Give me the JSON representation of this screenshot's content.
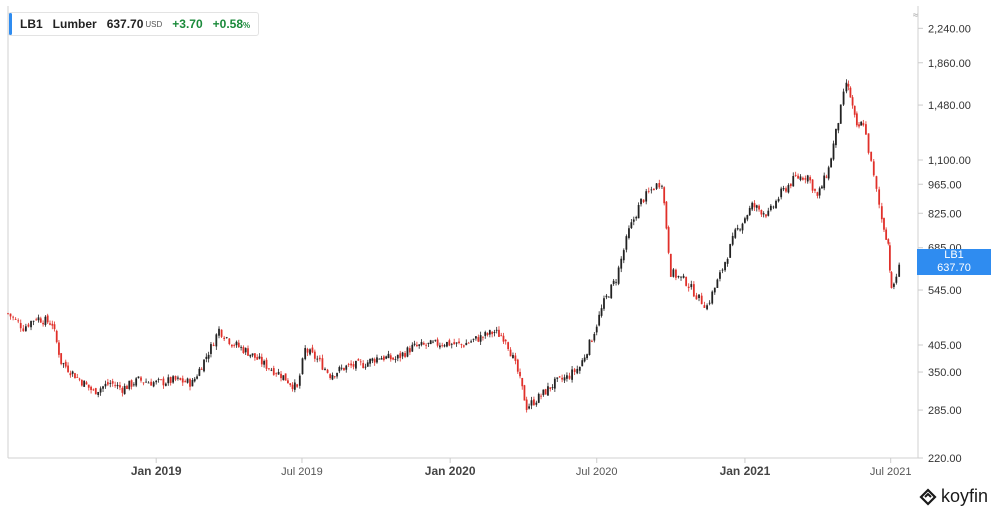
{
  "legend": {
    "symbol": "LB1",
    "name": "Lumber",
    "price": "637.70",
    "currency": "USD",
    "change": "+3.70",
    "change_pct": "+0.58",
    "pct_unit": "%",
    "accent_color": "#2f8cf0",
    "positive_color": "#1a8a3a"
  },
  "price_tag": {
    "symbol": "LB1",
    "value": "637.70"
  },
  "brand": {
    "name": "koyfin",
    "icon": "koyfin-logo-icon"
  },
  "corner_mark": "≈",
  "chart_data": {
    "type": "candlestick",
    "y_scale": "log",
    "ylim": [
      220,
      2500
    ],
    "y_ticks": [
      "2,240.00",
      "1,860.00",
      "1,480.00",
      "1,100.00",
      "965.00",
      "825.00",
      "685.00",
      "545.00",
      "405.00",
      "350.00",
      "285.00",
      "220.00"
    ],
    "y_tick_values": [
      2240,
      1860,
      1480,
      1100,
      965,
      825,
      685,
      545,
      405,
      350,
      285,
      220
    ],
    "x_range": [
      "2018-07-01",
      "2021-07-20"
    ],
    "x_ticks": [
      {
        "label": "Jan 2019",
        "date": "2019-01-01",
        "major": true
      },
      {
        "label": "Jul 2019",
        "date": "2019-07-01",
        "major": false
      },
      {
        "label": "Jan 2020",
        "date": "2020-01-01",
        "major": true
      },
      {
        "label": "Jul 2020",
        "date": "2020-07-01",
        "major": false
      },
      {
        "label": "Jan 2021",
        "date": "2021-01-01",
        "major": true
      },
      {
        "label": "Jul 2021",
        "date": "2021-07-01",
        "major": false
      }
    ],
    "up_color": "#222222",
    "down_color": "#e0302a",
    "close_path": [
      {
        "date": "2018-07-01",
        "close": 480
      },
      {
        "date": "2018-07-20",
        "close": 445
      },
      {
        "date": "2018-08-05",
        "close": 470
      },
      {
        "date": "2018-08-25",
        "close": 455
      },
      {
        "date": "2018-09-05",
        "close": 370
      },
      {
        "date": "2018-09-25",
        "close": 340
      },
      {
        "date": "2018-10-15",
        "close": 315
      },
      {
        "date": "2018-11-05",
        "close": 330
      },
      {
        "date": "2018-11-20",
        "close": 320
      },
      {
        "date": "2018-12-10",
        "close": 335
      },
      {
        "date": "2019-01-01",
        "close": 330
      },
      {
        "date": "2019-01-25",
        "close": 335
      },
      {
        "date": "2019-02-15",
        "close": 330
      },
      {
        "date": "2019-03-10",
        "close": 400
      },
      {
        "date": "2019-03-20",
        "close": 440
      },
      {
        "date": "2019-04-05",
        "close": 410
      },
      {
        "date": "2019-04-25",
        "close": 390
      },
      {
        "date": "2019-05-15",
        "close": 365
      },
      {
        "date": "2019-06-05",
        "close": 345
      },
      {
        "date": "2019-06-25",
        "close": 320
      },
      {
        "date": "2019-07-05",
        "close": 395
      },
      {
        "date": "2019-07-20",
        "close": 375
      },
      {
        "date": "2019-08-05",
        "close": 345
      },
      {
        "date": "2019-08-25",
        "close": 360
      },
      {
        "date": "2019-09-15",
        "close": 365
      },
      {
        "date": "2019-10-05",
        "close": 380
      },
      {
        "date": "2019-10-25",
        "close": 375
      },
      {
        "date": "2019-11-15",
        "close": 400
      },
      {
        "date": "2019-12-05",
        "close": 405
      },
      {
        "date": "2019-12-25",
        "close": 410
      },
      {
        "date": "2020-01-15",
        "close": 405
      },
      {
        "date": "2020-02-05",
        "close": 420
      },
      {
        "date": "2020-02-25",
        "close": 435
      },
      {
        "date": "2020-03-10",
        "close": 420
      },
      {
        "date": "2020-03-25",
        "close": 350
      },
      {
        "date": "2020-04-05",
        "close": 290
      },
      {
        "date": "2020-04-20",
        "close": 305
      },
      {
        "date": "2020-05-10",
        "close": 330
      },
      {
        "date": "2020-05-25",
        "close": 340
      },
      {
        "date": "2020-06-10",
        "close": 360
      },
      {
        "date": "2020-06-25",
        "close": 420
      },
      {
        "date": "2020-07-10",
        "close": 510
      },
      {
        "date": "2020-07-25",
        "close": 580
      },
      {
        "date": "2020-08-10",
        "close": 750
      },
      {
        "date": "2020-08-25",
        "close": 880
      },
      {
        "date": "2020-09-10",
        "close": 950
      },
      {
        "date": "2020-09-20",
        "close": 980
      },
      {
        "date": "2020-10-01",
        "close": 600
      },
      {
        "date": "2020-10-20",
        "close": 570
      },
      {
        "date": "2020-11-05",
        "close": 520
      },
      {
        "date": "2020-11-15",
        "close": 500
      },
      {
        "date": "2020-12-01",
        "close": 590
      },
      {
        "date": "2020-12-20",
        "close": 740
      },
      {
        "date": "2021-01-10",
        "close": 860
      },
      {
        "date": "2021-01-30",
        "close": 820
      },
      {
        "date": "2021-02-15",
        "close": 920
      },
      {
        "date": "2021-03-05",
        "close": 1000
      },
      {
        "date": "2021-03-20",
        "close": 1010
      },
      {
        "date": "2021-04-01",
        "close": 900
      },
      {
        "date": "2021-04-15",
        "close": 1050
      },
      {
        "date": "2021-04-30",
        "close": 1450
      },
      {
        "date": "2021-05-07",
        "close": 1670
      },
      {
        "date": "2021-05-12",
        "close": 1550
      },
      {
        "date": "2021-05-20",
        "close": 1300
      },
      {
        "date": "2021-05-28",
        "close": 1350
      },
      {
        "date": "2021-06-10",
        "close": 1000
      },
      {
        "date": "2021-06-20",
        "close": 800
      },
      {
        "date": "2021-06-28",
        "close": 700
      },
      {
        "date": "2021-07-02",
        "close": 540
      },
      {
        "date": "2021-07-08",
        "close": 590
      },
      {
        "date": "2021-07-15",
        "close": 637.7
      }
    ]
  }
}
